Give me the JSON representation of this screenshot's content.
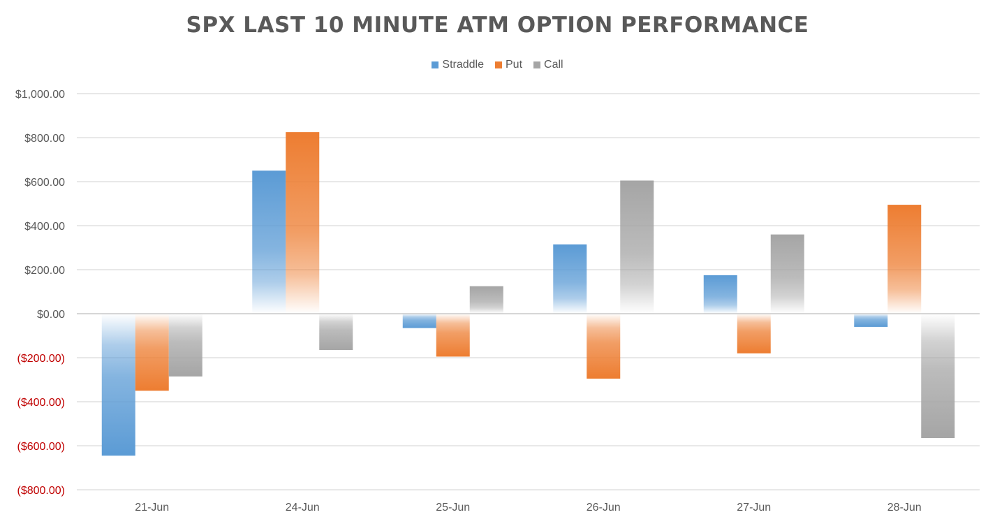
{
  "chart_data": {
    "type": "bar",
    "title": "SPX LAST 10 MINUTE ATM OPTION PERFORMANCE",
    "xlabel": "",
    "ylabel": "",
    "categories": [
      "21-Jun",
      "24-Jun",
      "25-Jun",
      "26-Jun",
      "27-Jun",
      "28-Jun"
    ],
    "series": [
      {
        "name": "Straddle",
        "color": "#5B9BD5",
        "values": [
          -645,
          650,
          -65,
          315,
          175,
          -60
        ]
      },
      {
        "name": "Put",
        "color": "#ED7D31",
        "values": [
          -350,
          825,
          -195,
          -295,
          -180,
          495
        ]
      },
      {
        "name": "Call",
        "color": "#A5A5A5",
        "values": [
          -285,
          -165,
          125,
          605,
          360,
          -565
        ]
      }
    ],
    "ylim": [
      -800,
      1000
    ],
    "yticks": [
      1000,
      800,
      600,
      400,
      200,
      0,
      -200,
      -400,
      -600,
      -800
    ],
    "ytick_labels": [
      "$1,000.00",
      "$800.00",
      "$600.00",
      "$400.00",
      "$200.00",
      "$0.00",
      "($200.00)",
      "($400.00)",
      "($600.00)",
      "($800.00)"
    ],
    "negative_label_color": "#C00000",
    "positive_label_color": "#595959",
    "grid": true,
    "legend": "top-center"
  }
}
